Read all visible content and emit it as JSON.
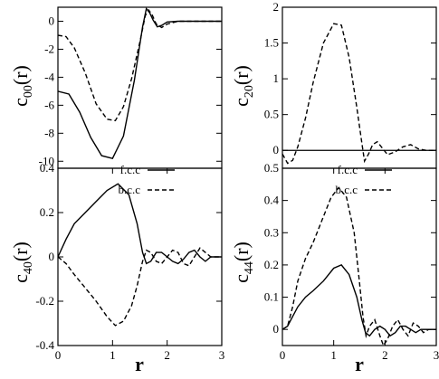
{
  "chart_data": [
    {
      "id": "c00",
      "type": "line",
      "ylabel_main": "c",
      "ylabel_sub": "00",
      "ylabel_tail": "(r)",
      "xlim": [
        0,
        3
      ],
      "ylim": [
        -10.5,
        1
      ],
      "xticks": [],
      "yticks": [
        0,
        -2,
        -4,
        -6,
        -8,
        -10
      ],
      "ytick_labels": [
        "0",
        "-2",
        "-4",
        "-6",
        "-8",
        "-10"
      ],
      "legend": [],
      "series": [
        {
          "name": "f.c.c",
          "style": "solid",
          "x": [
            0,
            0.2,
            0.4,
            0.6,
            0.8,
            1.0,
            1.2,
            1.4,
            1.55,
            1.62,
            1.68,
            1.74,
            1.82,
            1.9,
            2.0,
            2.2,
            2.5,
            3.0
          ],
          "y": [
            -5.0,
            -5.2,
            -6.5,
            -8.3,
            -9.6,
            -9.8,
            -8.2,
            -4.2,
            -0.4,
            0.9,
            0.6,
            0.1,
            -0.4,
            -0.3,
            -0.05,
            0.0,
            0.0,
            0.0
          ]
        },
        {
          "name": "b.c.c",
          "style": "dashed",
          "x": [
            0,
            0.15,
            0.3,
            0.5,
            0.7,
            0.9,
            1.05,
            1.2,
            1.35,
            1.5,
            1.6,
            1.66,
            1.72,
            1.8,
            1.9,
            2.0,
            2.2,
            2.5,
            3.0
          ],
          "y": [
            -1.0,
            -1.1,
            -1.9,
            -3.7,
            -5.9,
            -7.0,
            -7.1,
            -6.1,
            -4.1,
            -1.5,
            0.4,
            0.8,
            0.5,
            -0.2,
            -0.45,
            -0.2,
            0.0,
            0.0,
            0.0
          ]
        }
      ]
    },
    {
      "id": "c20",
      "type": "line",
      "ylabel_main": "c",
      "ylabel_sub": "20",
      "ylabel_tail": "(r)",
      "xlim": [
        0,
        3
      ],
      "ylim": [
        -0.25,
        2.0
      ],
      "xticks": [],
      "yticks": [
        0,
        0.5,
        1,
        1.5,
        2
      ],
      "ytick_labels": [
        "0",
        "0.5",
        "1",
        "1.5",
        "2"
      ],
      "zero_line": true,
      "legend": [],
      "series": [
        {
          "name": "b.c.c",
          "style": "dashed",
          "x": [
            0,
            0.1,
            0.2,
            0.3,
            0.45,
            0.6,
            0.8,
            1.0,
            1.15,
            1.3,
            1.45,
            1.55,
            1.6,
            1.68,
            1.76,
            1.85,
            1.95,
            2.05,
            2.2,
            2.35,
            2.5,
            2.65,
            2.8,
            3.0
          ],
          "y": [
            -0.05,
            -0.18,
            -0.14,
            0.05,
            0.45,
            0.95,
            1.5,
            1.77,
            1.75,
            1.3,
            0.6,
            0.1,
            -0.15,
            -0.05,
            0.08,
            0.12,
            0.03,
            -0.06,
            -0.02,
            0.05,
            0.08,
            0.02,
            0.0,
            0.0
          ]
        }
      ]
    },
    {
      "id": "c40",
      "type": "line",
      "ylabel_main": "c",
      "ylabel_sub": "40",
      "ylabel_tail": "(r)",
      "xlim": [
        0,
        3
      ],
      "ylim": [
        -0.4,
        0.4
      ],
      "xticks": [
        0,
        1,
        2,
        3
      ],
      "xtick_labels": [
        "0",
        "1",
        "2",
        "3"
      ],
      "yticks": [
        0.4,
        0.2,
        0,
        -0.2,
        -0.4
      ],
      "ytick_labels": [
        "0.4",
        "0.2",
        "0",
        "-0.2",
        "-0.4"
      ],
      "xlabel": "r",
      "legend": [
        {
          "label": "f.c.c",
          "style": "solid"
        },
        {
          "label": "b.c.c",
          "style": "dashed"
        }
      ],
      "series": [
        {
          "name": "f.c.c",
          "style": "solid",
          "x": [
            0,
            0.15,
            0.3,
            0.5,
            0.7,
            0.9,
            1.1,
            1.3,
            1.45,
            1.55,
            1.62,
            1.7,
            1.8,
            1.9,
            2.0,
            2.1,
            2.2,
            2.3,
            2.4,
            2.5,
            2.6,
            2.7,
            2.8,
            3.0
          ],
          "y": [
            0.0,
            0.08,
            0.15,
            0.2,
            0.25,
            0.3,
            0.33,
            0.28,
            0.15,
            0.02,
            -0.03,
            -0.02,
            0.02,
            0.02,
            0.0,
            -0.02,
            -0.03,
            -0.01,
            0.02,
            0.03,
            0.0,
            -0.02,
            0.0,
            0.0
          ]
        },
        {
          "name": "b.c.c",
          "style": "dashed",
          "x": [
            0,
            0.15,
            0.3,
            0.5,
            0.7,
            0.9,
            1.05,
            1.2,
            1.35,
            1.45,
            1.55,
            1.62,
            1.7,
            1.8,
            1.9,
            2.0,
            2.1,
            2.2,
            2.3,
            2.4,
            2.5,
            2.6,
            2.7,
            2.8,
            3.0
          ],
          "y": [
            0.0,
            -0.03,
            -0.08,
            -0.14,
            -0.2,
            -0.27,
            -0.31,
            -0.29,
            -0.22,
            -0.13,
            -0.02,
            0.03,
            0.02,
            -0.02,
            -0.03,
            0.0,
            0.03,
            0.02,
            -0.03,
            -0.04,
            0.0,
            0.04,
            0.02,
            0.0,
            0.0
          ]
        }
      ]
    },
    {
      "id": "c44",
      "type": "line",
      "ylabel_main": "c",
      "ylabel_sub": "44",
      "ylabel_tail": "(r)",
      "xlim": [
        0,
        3
      ],
      "ylim": [
        -0.05,
        0.5
      ],
      "xticks": [
        0,
        1,
        2,
        3
      ],
      "xtick_labels": [
        "0",
        "1",
        "2",
        "3"
      ],
      "yticks": [
        0,
        0.1,
        0.2,
        0.3,
        0.4,
        0.5
      ],
      "ytick_labels": [
        "0",
        "0.1",
        "0.2",
        "0.3",
        "0.4",
        "0.5"
      ],
      "xlabel": "r",
      "legend": [
        {
          "label": "f.c.c",
          "style": "solid"
        },
        {
          "label": "b.c.c",
          "style": "dashed"
        }
      ],
      "series": [
        {
          "name": "f.c.c",
          "style": "solid",
          "x": [
            0,
            0.1,
            0.2,
            0.3,
            0.45,
            0.6,
            0.8,
            1.0,
            1.15,
            1.3,
            1.45,
            1.55,
            1.62,
            1.7,
            1.8,
            1.9,
            2.0,
            2.1,
            2.2,
            2.3,
            2.4,
            2.5,
            2.6,
            2.7,
            2.8,
            3.0
          ],
          "y": [
            0.0,
            0.01,
            0.04,
            0.07,
            0.1,
            0.12,
            0.15,
            0.19,
            0.2,
            0.17,
            0.1,
            0.03,
            -0.01,
            -0.02,
            0.0,
            0.01,
            0.0,
            -0.02,
            -0.01,
            0.01,
            0.01,
            0.0,
            -0.01,
            0.0,
            0.0,
            0.0
          ]
        },
        {
          "name": "b.c.c",
          "style": "dashed",
          "x": [
            0,
            0.1,
            0.2,
            0.3,
            0.45,
            0.6,
            0.8,
            0.95,
            1.1,
            1.25,
            1.4,
            1.5,
            1.57,
            1.63,
            1.7,
            1.8,
            1.9,
            1.97,
            2.05,
            2.15,
            2.25,
            2.35,
            2.45,
            2.55,
            2.65,
            2.75,
            2.85,
            3.0
          ],
          "y": [
            0.0,
            0.01,
            0.07,
            0.15,
            0.22,
            0.27,
            0.35,
            0.41,
            0.44,
            0.41,
            0.3,
            0.15,
            0.04,
            -0.02,
            0.01,
            0.03,
            -0.02,
            -0.05,
            -0.03,
            0.01,
            0.03,
            0.0,
            -0.02,
            0.02,
            0.01,
            -0.01,
            0.0,
            0.0
          ]
        }
      ]
    }
  ]
}
